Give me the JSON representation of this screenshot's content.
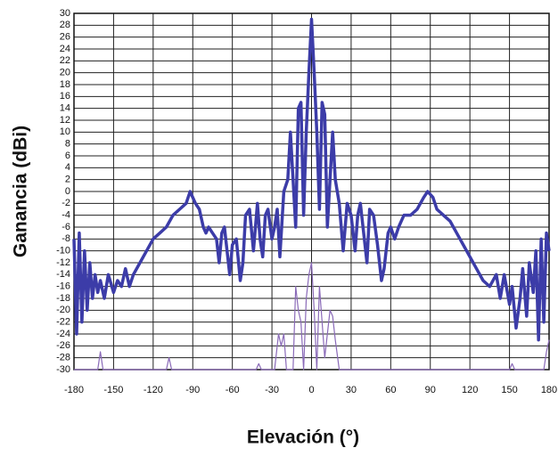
{
  "chart_data": {
    "type": "line",
    "xlabel": "Elevación (°)",
    "ylabel": "Ganancia (dBi)",
    "xlim": [
      -180,
      180
    ],
    "xticks": [
      -180,
      -150,
      -120,
      -90,
      -60,
      -30,
      0,
      30,
      60,
      90,
      120,
      150,
      180
    ],
    "ylim": [
      -30,
      30
    ],
    "yticks": [
      -30,
      -28,
      -26,
      -24,
      -22,
      -20,
      -18,
      -16,
      -14,
      -12,
      -10,
      -8,
      -6,
      -4,
      -2,
      0,
      2,
      4,
      6,
      8,
      10,
      12,
      14,
      16,
      18,
      20,
      22,
      24,
      26,
      28,
      30
    ],
    "grid": true,
    "series": [
      {
        "color": "#3c3ca8",
        "width": 3.5,
        "x": [
          -180,
          -178,
          -176,
          -174,
          -172,
          -170,
          -168,
          -166,
          -164,
          -162,
          -160,
          -157,
          -154,
          -150,
          -147,
          -144,
          -141,
          -138,
          -135,
          -130,
          -125,
          -120,
          -115,
          -110,
          -105,
          -100,
          -95,
          -92,
          -90,
          -88,
          -85,
          -82,
          -80,
          -78,
          -75,
          -72,
          -70,
          -68,
          -66,
          -64,
          -62,
          -60,
          -57,
          -54,
          -52,
          -50,
          -47,
          -44,
          -41,
          -39,
          -37,
          -35,
          -33,
          -30,
          -28,
          -26,
          -24,
          -21,
          -18,
          -16,
          -14,
          -12,
          -10,
          -8,
          -6,
          -4,
          -2,
          0,
          2,
          4,
          6,
          8,
          10,
          12,
          14,
          16,
          18,
          21,
          24,
          27,
          30,
          33,
          35,
          37,
          40,
          42,
          44,
          47,
          50,
          53,
          55,
          58,
          60,
          63,
          66,
          70,
          75,
          80,
          85,
          88,
          92,
          95,
          100,
          105,
          110,
          115,
          120,
          125,
          130,
          135,
          140,
          143,
          146,
          150,
          152,
          155,
          158,
          160,
          163,
          165,
          168,
          170,
          172,
          174,
          176,
          178,
          180
        ],
        "values": [
          -8,
          -24,
          -7,
          -22,
          -10,
          -20,
          -12,
          -18,
          -14,
          -17,
          -15,
          -18,
          -14,
          -17,
          -15,
          -16,
          -13,
          -16,
          -14,
          -12,
          -10,
          -8,
          -7,
          -6,
          -4,
          -3,
          -2,
          0,
          -1,
          -2,
          -3,
          -6,
          -7,
          -6,
          -7,
          -8,
          -12,
          -7,
          -6,
          -10,
          -14,
          -9,
          -8,
          -15,
          -12,
          -4,
          -3,
          -10,
          -2,
          -8,
          -11,
          -4,
          -3,
          -8,
          -6,
          -3,
          -11,
          0,
          2,
          10,
          2,
          -6,
          14,
          15,
          -4,
          10,
          20,
          29,
          20,
          10,
          -3,
          15,
          13,
          -6,
          2,
          10,
          2,
          -2,
          -10,
          -2,
          -4,
          -10,
          -4,
          -2,
          -8,
          -12,
          -3,
          -4,
          -9,
          -15,
          -13,
          -7,
          -6,
          -8,
          -6,
          -4,
          -4,
          -3,
          -1,
          0,
          -1,
          -3,
          -4,
          -5,
          -7,
          -9,
          -11,
          -13,
          -15,
          -16,
          -14,
          -18,
          -14,
          -19,
          -16,
          -23,
          -18,
          -13,
          -21,
          -12,
          -17,
          -10,
          -25,
          -8,
          -22,
          -7,
          -10
        ]
      },
      {
        "color": "#8a6ab8",
        "width": 1.2,
        "x": [
          -180,
          -162,
          -160,
          -158,
          -110,
          -108,
          -106,
          -42,
          -40,
          -38,
          -28,
          -25,
          -23,
          -21,
          -19,
          -14,
          -12,
          -10,
          -8,
          -6,
          -4,
          -2,
          0,
          2,
          4,
          6,
          8,
          10,
          12,
          14,
          16,
          18,
          21,
          150,
          152,
          154,
          176,
          178,
          180
        ],
        "values": [
          -30,
          -30,
          -27,
          -30,
          -30,
          -28,
          -30,
          -30,
          -29,
          -30,
          -30,
          -24,
          -26,
          -24,
          -30,
          -30,
          -16,
          -20,
          -22,
          -30,
          -18,
          -14,
          -12,
          -20,
          -30,
          -16,
          -22,
          -28,
          -24,
          -20,
          -21,
          -25,
          -30,
          -30,
          -29,
          -30,
          -30,
          -27,
          -25
        ]
      }
    ]
  }
}
